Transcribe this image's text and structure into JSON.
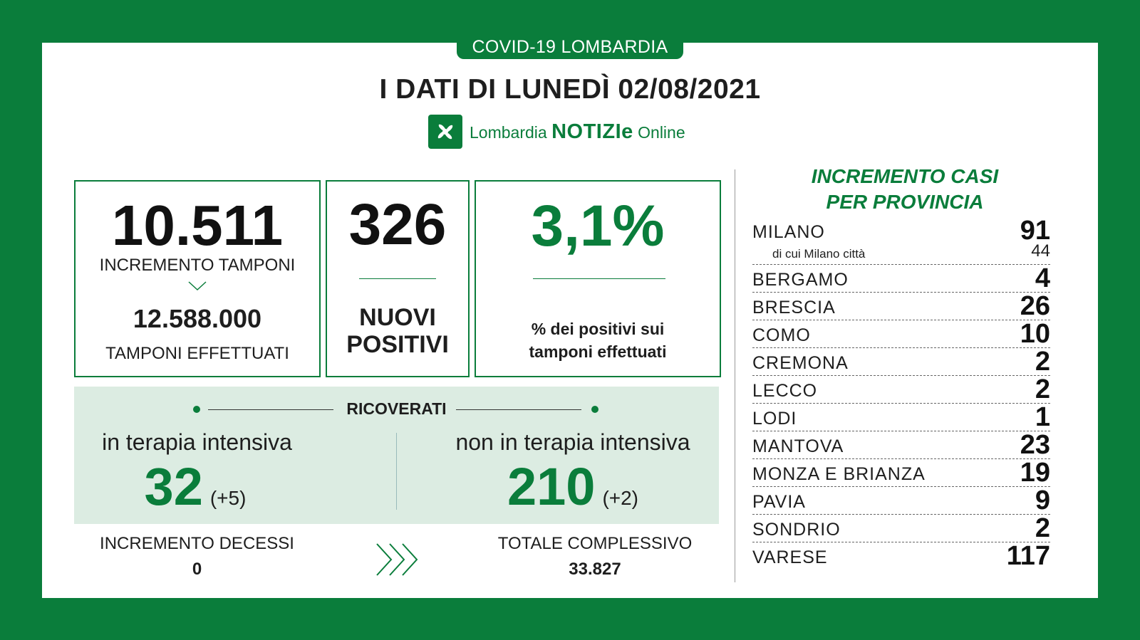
{
  "header": {
    "tag": "COVID-19 LOMBARDIA",
    "title": "I DATI DI LUNEDÌ 02/08/2021",
    "logo_name": "Lombardia",
    "logo_bold": "NOTIZIe",
    "logo_online": "Online"
  },
  "tamponi": {
    "increment": "10.511",
    "increment_label": "INCREMENTO TAMPONI",
    "total": "12.588.000",
    "total_label": "TAMPONI EFFETTUATI"
  },
  "positivi": {
    "value": "326",
    "label_line1": "NUOVI",
    "label_line2": "POSITIVI"
  },
  "percentuale": {
    "value": "3,1%",
    "label_line1": "% dei positivi sui",
    "label_line2": "tamponi effettuati"
  },
  "ricoverati": {
    "title": "RICOVERATI",
    "intensiva_label": "in terapia intensiva",
    "intensiva_value": "32",
    "intensiva_delta": "(+5)",
    "non_intensiva_label": "non in terapia intensiva",
    "non_intensiva_value": "210",
    "non_intensiva_delta": "(+2)"
  },
  "decessi": {
    "label": "INCREMENTO DECESSI",
    "value": "0",
    "total_label": "TOTALE COMPLESSIVO",
    "total_value": "33.827"
  },
  "province": {
    "title_line1": "INCREMENTO CASI",
    "title_line2": "PER PROVINCIA",
    "milano": {
      "name": "MILANO",
      "value": "91",
      "city_label": "di cui Milano città",
      "city_value": "44"
    },
    "items": [
      {
        "name": "BERGAMO",
        "value": "4"
      },
      {
        "name": "BRESCIA",
        "value": "26"
      },
      {
        "name": "COMO",
        "value": "10"
      },
      {
        "name": "CREMONA",
        "value": "2"
      },
      {
        "name": "LECCO",
        "value": "2"
      },
      {
        "name": "LODI",
        "value": "1"
      },
      {
        "name": "MANTOVA",
        "value": "23"
      },
      {
        "name": "MONZA E BRIANZA",
        "value": "19"
      },
      {
        "name": "PAVIA",
        "value": "9"
      },
      {
        "name": "SONDRIO",
        "value": "2"
      },
      {
        "name": "VARESE",
        "value": "117"
      }
    ]
  },
  "colors": {
    "brand_green": "#0a7d3b",
    "panel_bg": "#dcece2"
  },
  "icons": [
    "lombardia-rose-icon",
    "chevron-down-icon",
    "triple-chevron-right-icon"
  ]
}
